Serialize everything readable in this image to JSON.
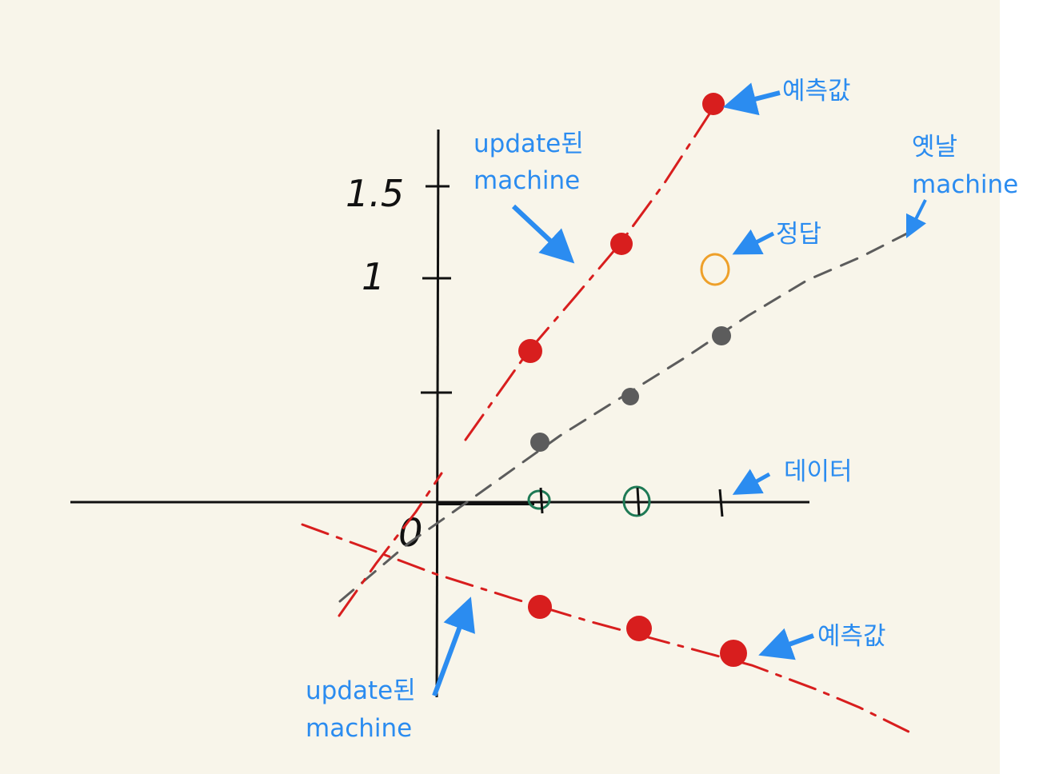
{
  "axis_labels": {
    "y_tick_1_5": "1.5",
    "y_tick_1": "1",
    "origin": "0"
  },
  "annotations": {
    "pred_top": "예측값",
    "pred_bottom": "예측값",
    "updated_top_line1": "update된",
    "updated_top_line2": "machine",
    "updated_bottom_line1": "update된",
    "updated_bottom_line2": "machine",
    "old_line1": "옛날",
    "old_line2": "machine",
    "answer": "정답",
    "data": "데이터"
  },
  "colors": {
    "background": "#f8f5ea",
    "axis": "#111111",
    "updated_machine": "#d81e1e",
    "old_machine": "#5c5c5c",
    "answer": "#eea02a",
    "data_point": "#1e7a55",
    "annotation": "#2b8cf0"
  },
  "icons": [
    "arrow-icon"
  ]
}
